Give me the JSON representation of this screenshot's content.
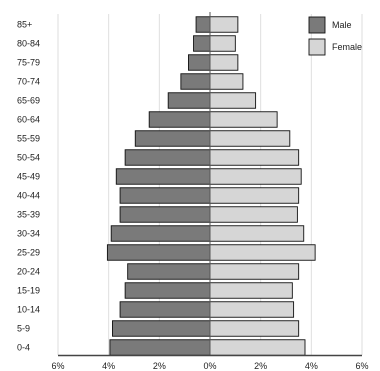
{
  "chart_data": {
    "type": "bar",
    "orientation": "horizontal",
    "diverging": true,
    "categories": [
      "0-4",
      "5-9",
      "10-14",
      "15-19",
      "20-24",
      "25-29",
      "30-34",
      "35-39",
      "40-44",
      "45-49",
      "50-54",
      "55-59",
      "60-64",
      "65-69",
      "70-74",
      "75-79",
      "80-84",
      "85+"
    ],
    "series": [
      {
        "name": "Male",
        "color": "#7a7a7a",
        "values": [
          3.95,
          3.85,
          3.55,
          3.35,
          3.25,
          4.05,
          3.9,
          3.55,
          3.55,
          3.7,
          3.35,
          2.95,
          2.4,
          1.65,
          1.15,
          0.85,
          0.65,
          0.55
        ]
      },
      {
        "name": "Female",
        "color": "#d6d6d6",
        "values": [
          3.75,
          3.5,
          3.3,
          3.25,
          3.5,
          4.15,
          3.7,
          3.45,
          3.5,
          3.6,
          3.5,
          3.15,
          2.65,
          1.8,
          1.3,
          1.1,
          1.0,
          1.1
        ]
      }
    ],
    "xlim": [
      -6,
      6
    ],
    "x_ticks": [
      "6%",
      "4%",
      "2%",
      "0%",
      "2%",
      "4%",
      "6%"
    ],
    "xlabel": "",
    "ylabel": "",
    "title": "",
    "grid": "vertical",
    "legend_position": "top-right"
  }
}
